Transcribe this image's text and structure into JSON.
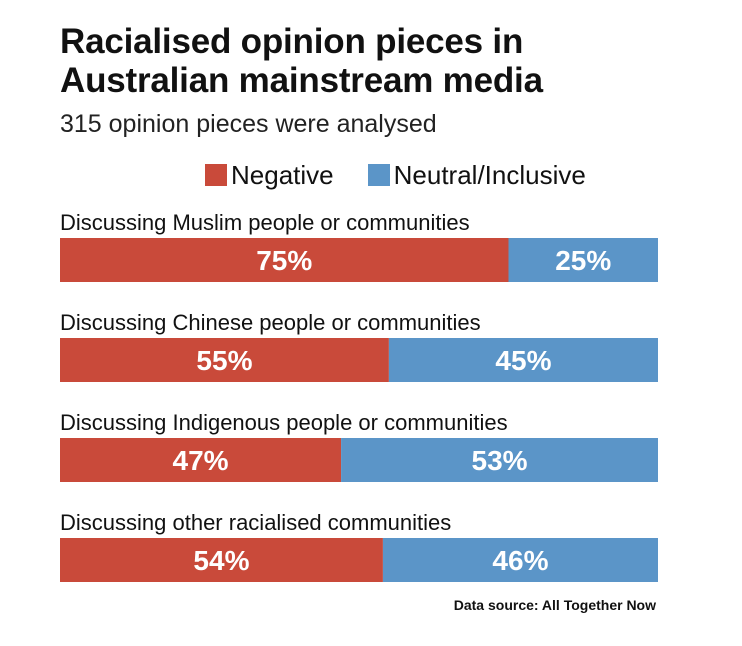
{
  "chart_data": {
    "type": "bar",
    "orientation": "horizontal",
    "stacked": true,
    "title": "Racialised opinion pieces in Australian mainstream media",
    "subtitle": "315 opinion pieces were analysed",
    "categories": [
      "Discussing Muslim people or communities",
      "Discussing Chinese people or communities",
      "Discussing Indigenous people or communities",
      "Discussing other racialised communities"
    ],
    "series": [
      {
        "name": "Negative",
        "color": "#c94a3a",
        "values": [
          75,
          55,
          47,
          54
        ],
        "labels": [
          "75%",
          "55%",
          "47%",
          "54%"
        ]
      },
      {
        "name": "Neutral/Inclusive",
        "color": "#5b95c8",
        "values": [
          25,
          45,
          53,
          46
        ],
        "labels": [
          "25%",
          "45%",
          "53%",
          "46%"
        ]
      }
    ],
    "xlim": [
      0,
      100
    ],
    "unit": "%",
    "legend_position": "top",
    "source": "Data source: All Together Now"
  }
}
